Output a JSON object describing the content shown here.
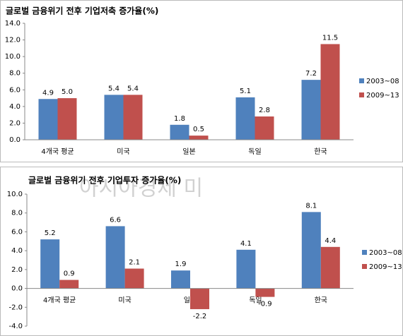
{
  "watermark": "아시아경제 미",
  "chart_data": [
    {
      "type": "bar",
      "title": "글로벌 금융위기 전후 기업저축 증가율(%)",
      "categories": [
        "4개국 평균",
        "미국",
        "일본",
        "독일",
        "한국"
      ],
      "series": [
        {
          "name": "2003~08",
          "color": "#4f81bd",
          "values": [
            4.9,
            5.4,
            1.8,
            5.1,
            7.2
          ],
          "value_labels": [
            "4.9",
            "5.4",
            "1.8",
            "5.1",
            "7.2"
          ]
        },
        {
          "name": "2009~13",
          "color": "#c0504d",
          "values": [
            5.0,
            5.4,
            0.5,
            2.8,
            11.5
          ],
          "value_labels": [
            "5.0",
            "5.4",
            "0.5",
            "2.8",
            "11.5"
          ]
        }
      ],
      "ylim": [
        0,
        14
      ],
      "yticks": [
        {
          "value": 0,
          "label": "0.0"
        },
        {
          "value": 2,
          "label": "2.0"
        },
        {
          "value": 4,
          "label": "4.0"
        },
        {
          "value": 6,
          "label": "6.0"
        },
        {
          "value": 8,
          "label": "8.0"
        },
        {
          "value": 10,
          "label": "10.0"
        },
        {
          "value": 12,
          "label": "12.0"
        },
        {
          "value": 14,
          "label": "14.0"
        }
      ],
      "legend": "right"
    },
    {
      "type": "bar",
      "title": "글로벌 금융위기 전후 기업투자 증가율(%)",
      "categories": [
        "4개국 평균",
        "미국",
        "일본",
        "독일",
        "한국"
      ],
      "series": [
        {
          "name": "2003~08",
          "color": "#4f81bd",
          "values": [
            5.2,
            6.6,
            1.9,
            4.1,
            8.1
          ],
          "value_labels": [
            "5.2",
            "6.6",
            "1.9",
            "4.1",
            "8.1"
          ]
        },
        {
          "name": "2009~13",
          "color": "#c0504d",
          "values": [
            0.9,
            2.1,
            -2.2,
            -0.9,
            4.4
          ],
          "value_labels": [
            "0.9",
            "2.1",
            "-2.2",
            "-0.9",
            "4.4"
          ]
        }
      ],
      "ylim": [
        -4,
        10
      ],
      "yticks": [
        {
          "value": -4,
          "label": "-4.0"
        },
        {
          "value": -2,
          "label": "-2.0"
        },
        {
          "value": 0,
          "label": "0.0"
        },
        {
          "value": 2,
          "label": "2.0"
        },
        {
          "value": 4,
          "label": "4.0"
        },
        {
          "value": 6,
          "label": "6.0"
        },
        {
          "value": 8,
          "label": "8.0"
        },
        {
          "value": 10,
          "label": "10.0"
        }
      ],
      "legend": "right"
    }
  ]
}
